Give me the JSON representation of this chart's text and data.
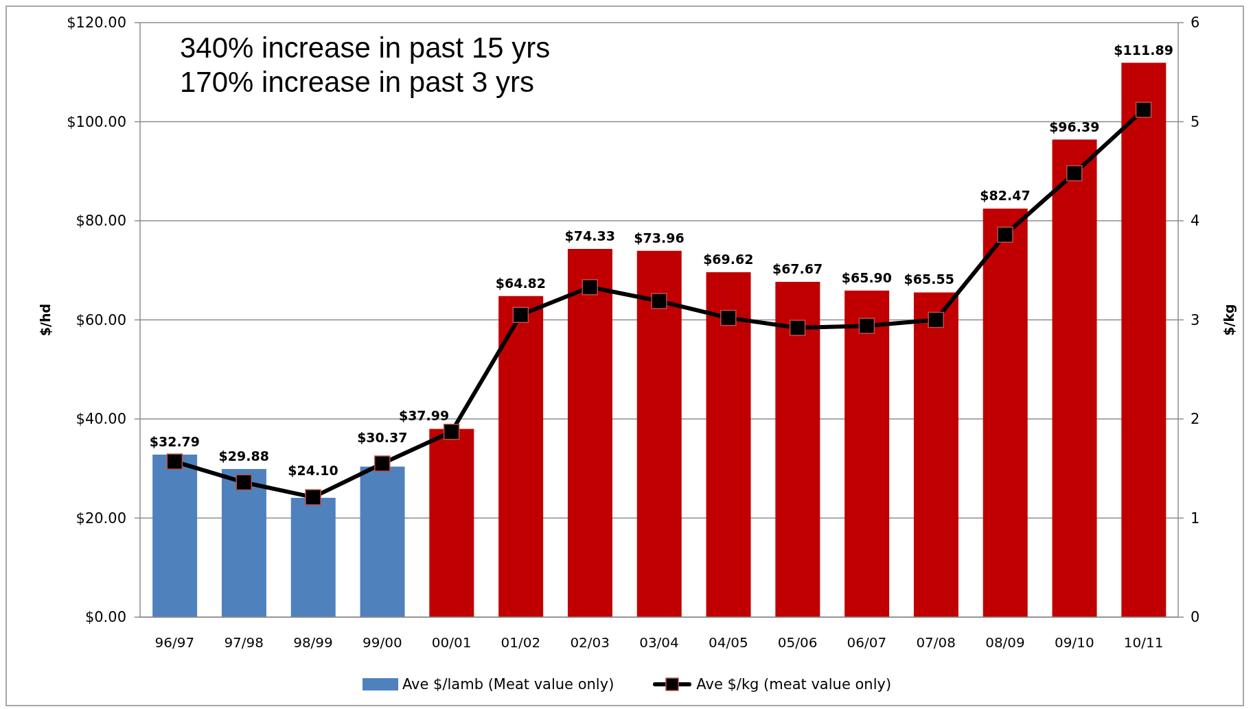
{
  "chart_data": {
    "type": "bar",
    "categories": [
      "96/97",
      "97/98",
      "98/99",
      "99/00",
      "00/01",
      "01/02",
      "02/03",
      "03/04",
      "04/05",
      "05/06",
      "06/07",
      "07/08",
      "08/09",
      "09/10",
      "10/11"
    ],
    "series": [
      {
        "name": "Ave $/lamb (Meat value only)",
        "color": "#4f81bd",
        "colors": [
          "#4f81bd",
          "#4f81bd",
          "#4f81bd",
          "#4f81bd",
          "#c00000",
          "#c00000",
          "#c00000",
          "#c00000",
          "#c00000",
          "#c00000",
          "#c00000",
          "#c00000",
          "#c00000",
          "#c00000",
          "#c00000"
        ],
        "values": [
          32.79,
          29.88,
          24.1,
          30.37,
          37.99,
          64.82,
          74.33,
          73.96,
          69.62,
          67.67,
          65.9,
          65.55,
          82.47,
          96.39,
          111.89
        ],
        "value_labels": [
          "$32.79",
          "$29.88",
          "$24.10",
          "$30.37",
          "$37.99",
          "$64.82",
          "$74.33",
          "$73.96",
          "$69.62",
          "$67.67",
          "$65.90",
          "$65.55",
          "$82.47",
          "$96.39",
          "$111.89"
        ]
      },
      {
        "name": "Ave $/kg (meat value only)",
        "type": "line",
        "axis": "y2",
        "color": "#000000",
        "marker": "square",
        "values": [
          1.57,
          1.36,
          1.21,
          1.55,
          1.87,
          3.05,
          3.33,
          3.19,
          3.02,
          2.92,
          2.94,
          3.0,
          3.86,
          4.48,
          5.12
        ]
      }
    ],
    "ylabel": "$/hd",
    "y2label": "$/kg",
    "ylim": [
      0,
      120
    ],
    "yticks": [
      {
        "value": 0,
        "label": "$0.00"
      },
      {
        "value": 20,
        "label": "$20.00"
      },
      {
        "value": 40,
        "label": "$40.00"
      },
      {
        "value": 60,
        "label": "$60.00"
      },
      {
        "value": 80,
        "label": "$80.00"
      },
      {
        "value": 100,
        "label": "$100.00"
      },
      {
        "value": 120,
        "label": "$120.00"
      }
    ],
    "y2lim": [
      0,
      6
    ],
    "y2ticks": [
      0,
      1,
      2,
      3,
      4,
      5,
      6
    ],
    "annotations": [
      "340% increase in past 15 yrs",
      "170% increase in past 3 yrs"
    ],
    "grid": "y",
    "legend": "bottom"
  }
}
